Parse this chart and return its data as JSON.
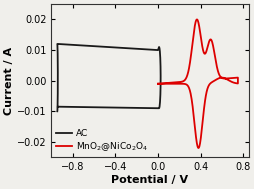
{
  "title": "",
  "xlabel": "Potential / V",
  "ylabel": "Current / A",
  "xlim": [
    -1.0,
    0.85
  ],
  "ylim": [
    -0.025,
    0.025
  ],
  "xticks": [
    -0.8,
    -0.4,
    0.0,
    0.4,
    0.8
  ],
  "yticks": [
    -0.02,
    -0.01,
    0.0,
    0.01,
    0.02
  ],
  "ac_color": "#1a1a1a",
  "mno2_color": "#dd0000",
  "legend_labels": [
    "AC",
    "MnO$_2$@NiCo$_2$O$_4$"
  ],
  "background_color": "#f0efeb",
  "linewidth": 1.3,
  "fontsize_ticks": 7,
  "fontsize_label": 8,
  "fontsize_legend": 6.5
}
